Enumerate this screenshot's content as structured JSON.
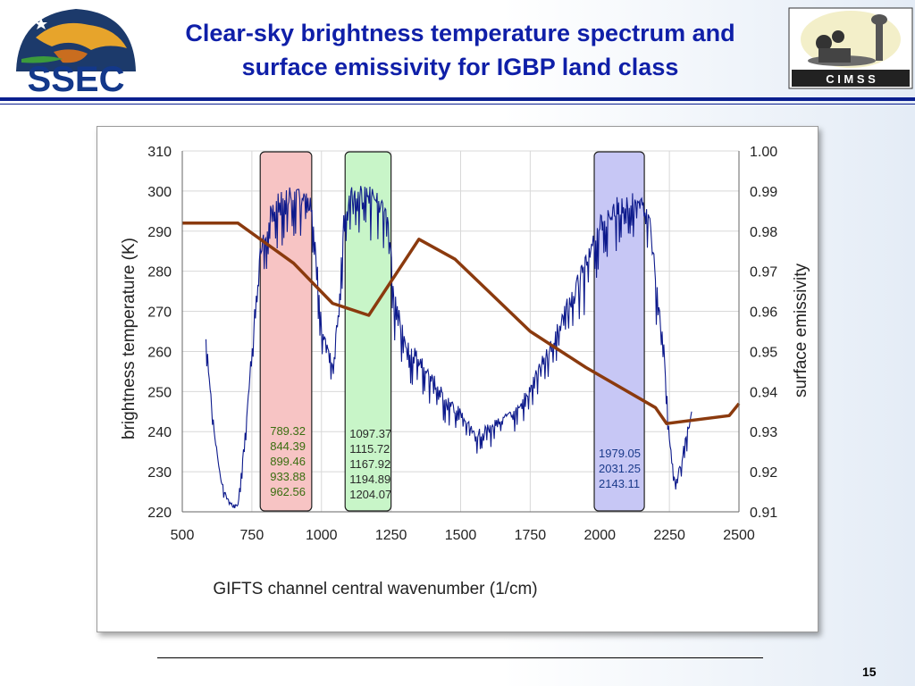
{
  "slide": {
    "title_line1": "Clear-sky brightness temperature spectrum and",
    "title_line2": "surface emissivity for IGBP land class",
    "page_number": "15",
    "logo_left_text": "SSEC",
    "logo_right_text": "C I M S S",
    "colors": {
      "title": "#0f1fa8",
      "header_rule": "#0a1f8f",
      "spectrum": "#0d1a8c",
      "emissivity": "#8b3a0e",
      "band1_fill": "#f7c4c4",
      "band2_fill": "#c8f5c8",
      "band3_fill": "#c7c7f5"
    }
  },
  "chart_data": {
    "type": "line",
    "title": "",
    "xlabel": "GIFTS channel central wavenumber (1/cm)",
    "ylabel": "brightness temperature (K)",
    "y2label": "surface emissivity",
    "xlim": [
      500,
      2500
    ],
    "ylim": [
      220,
      310
    ],
    "y2lim": [
      0.91,
      1.0
    ],
    "x_ticks": [
      "500",
      "750",
      "1000",
      "1250",
      "1500",
      "1750",
      "2000",
      "2250",
      "2500"
    ],
    "y_ticks": [
      "220",
      "230",
      "240",
      "250",
      "260",
      "270",
      "280",
      "290",
      "300",
      "310"
    ],
    "y2_ticks": [
      "0.91",
      "0.92",
      "0.93",
      "0.94",
      "0.95",
      "0.96",
      "0.97",
      "0.98",
      "0.99",
      "1.00"
    ],
    "grid": true,
    "series": [
      {
        "axis": "y1",
        "x": [
          585,
          600,
          620,
          640,
          660,
          680,
          700,
          720,
          740,
          760,
          780,
          800,
          820,
          850,
          880,
          910,
          940,
          960,
          980,
          1000,
          1020,
          1040,
          1060,
          1080,
          1100,
          1120,
          1150,
          1180,
          1200,
          1220,
          1240,
          1260,
          1300,
          1350,
          1400,
          1450,
          1500,
          1550,
          1600,
          1650,
          1700,
          1750,
          1800,
          1850,
          1900,
          1950,
          2000,
          2050,
          2100,
          2150,
          2180,
          2200,
          2230,
          2250,
          2270,
          2290,
          2310,
          2330
        ],
        "values": [
          265,
          252,
          238,
          228,
          224,
          222,
          222,
          236,
          252,
          272,
          287,
          293,
          297,
          300,
          301,
          301,
          300,
          299,
          286,
          269,
          262,
          258,
          272,
          296,
          302,
          302,
          302,
          301,
          301,
          299,
          294,
          276,
          264,
          260,
          255,
          249,
          246,
          240,
          242,
          244,
          247,
          252,
          260,
          268,
          276,
          284,
          294,
          298,
          300,
          299,
          294,
          282,
          262,
          240,
          228,
          232,
          240,
          245
        ]
      },
      {
        "axis": "y2",
        "x": [
          500,
          700,
          900,
          1040,
          1170,
          1350,
          1480,
          1600,
          1750,
          1950,
          2200,
          2240,
          2465,
          2500
        ],
        "values": [
          0.982,
          0.982,
          0.972,
          0.962,
          0.959,
          0.978,
          0.973,
          0.965,
          0.955,
          0.946,
          0.936,
          0.932,
          0.934,
          0.937
        ]
      }
    ],
    "bands": [
      {
        "x_start": 780,
        "x_end": 965,
        "labels": [
          "789.32",
          "844.39",
          "899.46",
          "933.88",
          "962.56"
        ]
      },
      {
        "x_start": 1085,
        "x_end": 1250,
        "labels": [
          "1097.37",
          "1115.72",
          "1167.92",
          "1194.89",
          "1204.07"
        ]
      },
      {
        "x_start": 1980,
        "x_end": 2160,
        "labels": [
          "1979.05",
          "2031.25",
          "2143.11"
        ]
      }
    ]
  }
}
